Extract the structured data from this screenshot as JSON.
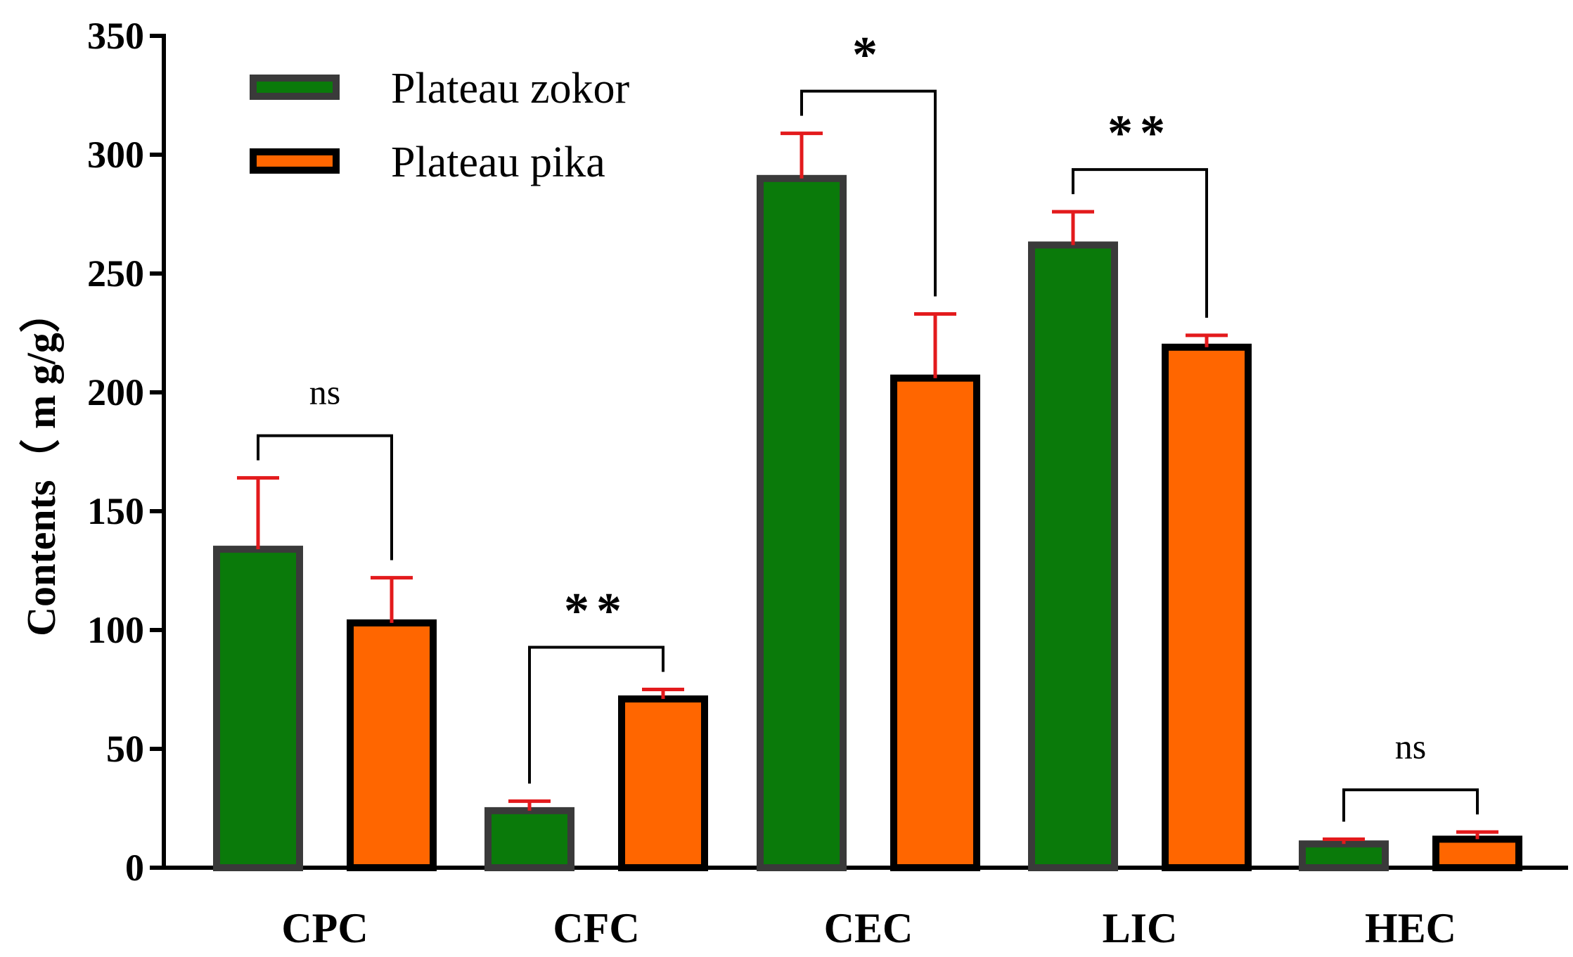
{
  "chart_data": {
    "type": "bar",
    "title": "",
    "xlabel": "",
    "ylabel": "Contents（ m g/g）",
    "ylim": [
      0,
      350
    ],
    "yticks": [
      "0",
      "50",
      "100",
      "150",
      "200",
      "250",
      "300",
      "350"
    ],
    "categories": [
      "CPC",
      "CFC",
      "CEC",
      "LIC",
      "HEC"
    ],
    "series": [
      {
        "name": "Plateau zokor",
        "color": "#0a7a0a",
        "stroke": "#3a3a3a",
        "values": [
          134,
          24,
          290,
          262,
          10
        ],
        "errors": [
          30,
          4,
          19,
          14,
          2
        ]
      },
      {
        "name": "Plateau pika",
        "color": "#ff6600",
        "stroke": "#000000",
        "values": [
          103,
          71,
          206,
          219,
          12
        ],
        "errors": [
          19,
          4,
          27,
          5,
          3
        ]
      }
    ],
    "error_bar_color": "#e31a1c",
    "legend_position": "top-left",
    "significance": [
      {
        "category": "CPC",
        "label": "ns"
      },
      {
        "category": "CFC",
        "label": "**"
      },
      {
        "category": "CEC",
        "label": "*"
      },
      {
        "category": "LIC",
        "label": "**"
      },
      {
        "category": "HEC",
        "label": "ns"
      }
    ]
  }
}
